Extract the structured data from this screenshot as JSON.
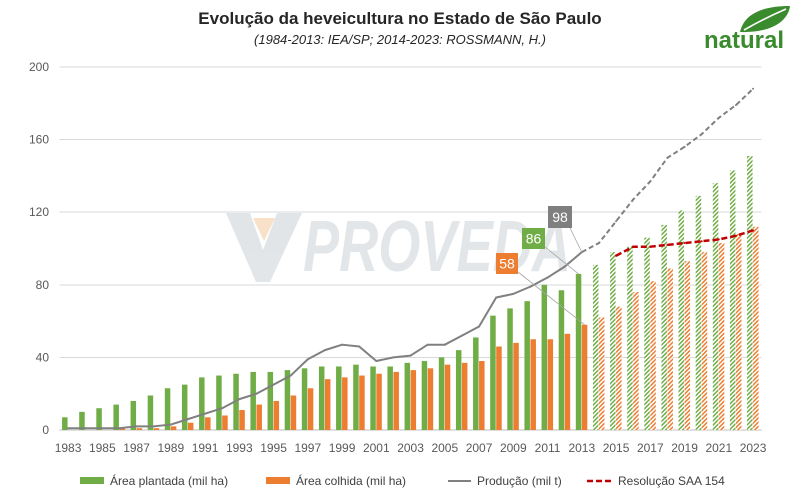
{
  "logo": {
    "text": "natural",
    "color": "#3a8b2e",
    "icon": "leaf-icon"
  },
  "watermark": {
    "text": "PROVEDA",
    "icon": "proveda-logo-icon"
  },
  "chart_data": {
    "type": "bar",
    "title": "Evolução da heveicultura no Estado de São Paulo",
    "subtitle": "(1984-2013: IEA/SP; 2014-2023: ROSSMANN, H.)",
    "x": [
      1983,
      1984,
      1985,
      1986,
      1987,
      1988,
      1989,
      1990,
      1991,
      1992,
      1993,
      1994,
      1995,
      1996,
      1997,
      1998,
      1999,
      2000,
      2001,
      2002,
      2003,
      2004,
      2005,
      2006,
      2007,
      2008,
      2009,
      2010,
      2011,
      2012,
      2013,
      2014,
      2015,
      2016,
      2017,
      2018,
      2019,
      2020,
      2021,
      2022,
      2023
    ],
    "x_tick_labels": [
      "1983",
      "1985",
      "1987",
      "1989",
      "1991",
      "1993",
      "1995",
      "1997",
      "1999",
      "2001",
      "2003",
      "2005",
      "2007",
      "2009",
      "2011",
      "2013",
      "2015",
      "2017",
      "2019",
      "2021",
      "2023"
    ],
    "y_ticks": [
      0,
      40,
      80,
      120,
      160,
      200
    ],
    "ylim": [
      0,
      200
    ],
    "grid": true,
    "legend_position": "bottom",
    "series": [
      {
        "name": "Área plantada (mil ha)",
        "type": "bar",
        "color": "#70ad47",
        "hatched_from": 2014,
        "values": [
          7,
          10,
          12,
          14,
          16,
          19,
          23,
          25,
          29,
          30,
          31,
          32,
          32,
          33,
          34,
          35,
          35,
          36,
          35,
          35,
          37,
          38,
          40,
          44,
          51,
          63,
          67,
          71,
          80,
          77,
          86,
          91,
          98,
          101,
          106,
          113,
          121,
          129,
          136,
          143,
          151
        ]
      },
      {
        "name": "Área colhida (mil ha)",
        "type": "bar",
        "color": "#ed7d31",
        "hatched_from": 2014,
        "values": [
          0,
          0,
          0,
          1,
          1,
          1,
          2,
          4,
          7,
          8,
          11,
          14,
          16,
          19,
          23,
          28,
          29,
          30,
          31,
          32,
          33,
          34,
          36,
          37,
          38,
          46,
          48,
          50,
          50,
          53,
          58,
          62,
          68,
          76,
          82,
          89,
          93,
          98,
          103,
          108,
          112
        ]
      },
      {
        "name": "Produção (mil t)",
        "type": "line",
        "color": "#808080",
        "dashed_from": 2013,
        "values": [
          1,
          1,
          1,
          1,
          2,
          2,
          3,
          6,
          9,
          12,
          17,
          20,
          25,
          30,
          39,
          44,
          47,
          46,
          38,
          40,
          41,
          47,
          47,
          52,
          57,
          73,
          75,
          79,
          84,
          90,
          98,
          103,
          115,
          127,
          137,
          150,
          156,
          163,
          172,
          179,
          188
        ]
      },
      {
        "name": "Resolução SAA 154",
        "type": "line",
        "color": "#c00000",
        "dashed": true,
        "values": [
          null,
          null,
          null,
          null,
          null,
          null,
          null,
          null,
          null,
          null,
          null,
          null,
          null,
          null,
          null,
          null,
          null,
          null,
          null,
          null,
          null,
          null,
          null,
          null,
          null,
          null,
          null,
          null,
          null,
          null,
          null,
          null,
          96,
          101,
          101,
          102,
          103,
          104,
          105,
          107,
          110
        ]
      }
    ],
    "data_labels": [
      {
        "series_index": 2,
        "x": 2013,
        "text": "98",
        "color": "#7f7f7f"
      },
      {
        "series_index": 0,
        "x": 2013,
        "text": "86",
        "color": "#70ad47"
      },
      {
        "series_index": 1,
        "x": 2013,
        "text": "58",
        "color": "#ed7d31"
      }
    ]
  }
}
